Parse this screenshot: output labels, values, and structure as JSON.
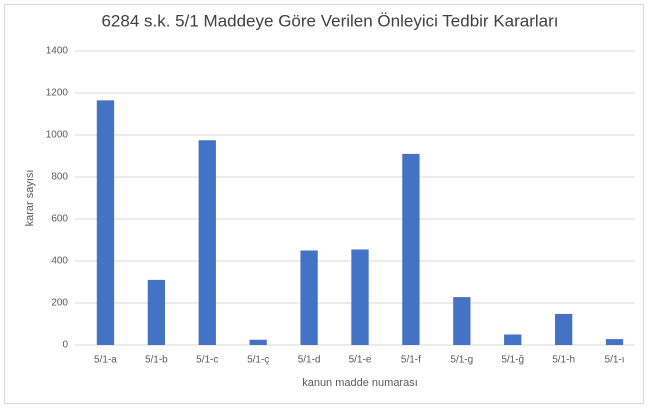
{
  "chart_data": {
    "type": "bar",
    "title": "6284 s.k. 5/1 Maddeye Göre Verilen Önleyici Tedbir Kararları",
    "x_label": "kanun madde numarası",
    "y_label": "karar sayısı",
    "categories": [
      "5/1-a",
      "5/1-b",
      "5/1-c",
      "5/1-ç",
      "5/1-d",
      "5/1-e",
      "5/1-f",
      "5/1-g",
      "5/1-ğ",
      "5/1-h",
      "5/1-ı"
    ],
    "values": [
      1165,
      310,
      975,
      25,
      450,
      455,
      910,
      228,
      50,
      148,
      28
    ],
    "color": "#4472c4",
    "ylim": [
      0,
      1400
    ],
    "yticks": [
      0,
      200,
      400,
      600,
      800,
      1000,
      1200,
      1400
    ],
    "grid": true
  }
}
